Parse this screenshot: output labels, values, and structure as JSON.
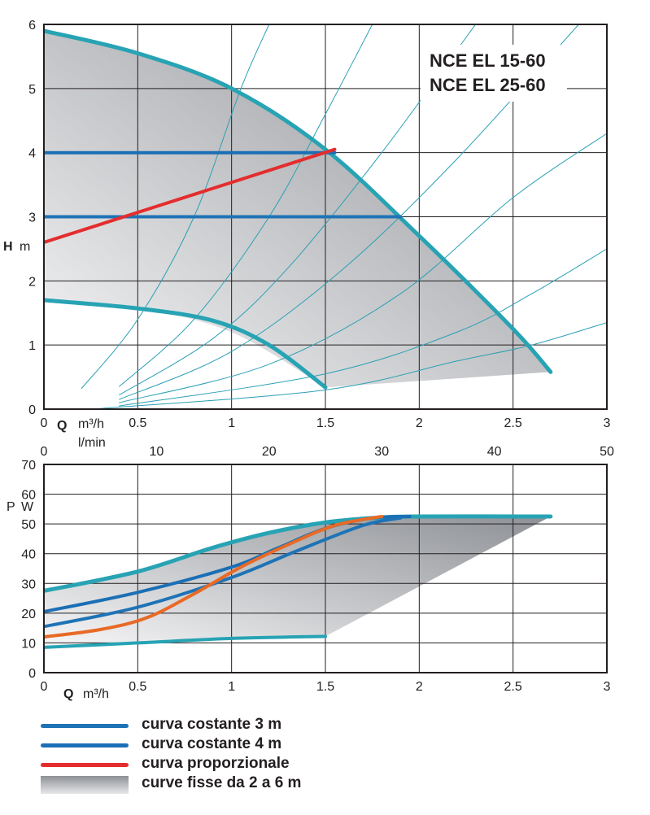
{
  "colors": {
    "max_curve": "#27a3b4",
    "constant_3m": "#1e73b6",
    "constant_4m": "#1b6fb5",
    "proportional_top": "#e42d2e",
    "proportional_bottom": "#e86a26",
    "system_curve": "#2aa0b5",
    "fill_dark": "#9b9ea3",
    "fill_light": "#f4f4f5",
    "grid": "#231f20"
  },
  "models": [
    "NCE EL 15-60",
    "NCE EL 25-60"
  ],
  "legend": [
    {
      "label": "curva costante 3 m",
      "type": "line",
      "color": "#1e73b6"
    },
    {
      "label": "curva costante 4 m",
      "type": "line",
      "color": "#1b6fb5"
    },
    {
      "label": "curva proporzionale",
      "type": "line",
      "color": "#e42d2e"
    },
    {
      "label": "curve fisse da 2 a 6 m",
      "type": "area",
      "color": "#9b9ea3"
    }
  ],
  "chart_data": [
    {
      "type": "line",
      "xlabel_symbol": "Q",
      "xlabel_unit": "m³/h",
      "x2label_unit": "l/min",
      "ylabel_symbol": "H",
      "ylabel_unit": "m",
      "xlim": [
        0,
        3
      ],
      "ylim": [
        0,
        6
      ],
      "x2lim": [
        0,
        50
      ],
      "xticks": [
        0,
        0.5,
        1,
        1.5,
        2,
        2.5,
        3
      ],
      "xtick_labels": [
        "0",
        "0.5",
        "1",
        "1.5",
        "2",
        "2.5",
        "3"
      ],
      "x2ticks": [
        0,
        10,
        20,
        30,
        40,
        50
      ],
      "x2tick_labels": [
        "0",
        "10",
        "20",
        "30",
        "40",
        "50"
      ],
      "yticks": [
        0,
        1,
        2,
        3,
        4,
        5,
        6
      ],
      "ytick_labels": [
        "0",
        "1",
        "2",
        "3",
        "4",
        "5",
        "6"
      ],
      "grid": true,
      "area": {
        "upper": [
          [
            0,
            5.9
          ],
          [
            0.5,
            5.55
          ],
          [
            1,
            5.0
          ],
          [
            1.5,
            4.05
          ],
          [
            2,
            2.7
          ],
          [
            2.5,
            1.25
          ],
          [
            2.7,
            0.58
          ]
        ],
        "lower": [
          [
            0,
            1.7
          ],
          [
            0.5,
            1.57
          ],
          [
            1,
            1.2
          ],
          [
            1.5,
            0.34
          ]
        ],
        "bottom_edge": [
          [
            1.5,
            0.34
          ],
          [
            2.7,
            0.58
          ]
        ]
      },
      "series": [
        {
          "key": "max",
          "points": [
            [
              0,
              5.9
            ],
            [
              0.5,
              5.55
            ],
            [
              1,
              5.0
            ],
            [
              1.5,
              4.05
            ],
            [
              2,
              2.7
            ],
            [
              2.5,
              1.25
            ],
            [
              2.7,
              0.58
            ]
          ],
          "color": "#27a3b4",
          "width": 5
        },
        {
          "key": "min",
          "points": [
            [
              0,
              1.7
            ],
            [
              0.5,
              1.57
            ],
            [
              0.9,
              1.38
            ],
            [
              1.2,
              1.0
            ],
            [
              1.5,
              0.34
            ]
          ],
          "color": "#27a3b4",
          "width": 5
        },
        {
          "key": "constant_4m",
          "points": [
            [
              0,
              4.0
            ],
            [
              1.55,
              4.0
            ]
          ],
          "color": "#1b6fb5",
          "width": 4
        },
        {
          "key": "constant_3m",
          "points": [
            [
              0,
              3.0
            ],
            [
              1.9,
              3.0
            ]
          ],
          "color": "#1e73b6",
          "width": 4
        },
        {
          "key": "proportional",
          "points": [
            [
              0,
              2.6
            ],
            [
              1.55,
              4.05
            ]
          ],
          "color": "#e42d2e",
          "width": 4
        }
      ],
      "system_curves": [
        {
          "points": [
            [
              0.2,
              0.32
            ],
            [
              0.5,
              1.4
            ],
            [
              0.8,
              3.0
            ],
            [
              1.05,
              5.0
            ],
            [
              1.2,
              6.0
            ]
          ]
        },
        {
          "points": [
            [
              0.4,
              0.35
            ],
            [
              0.8,
              1.4
            ],
            [
              1.2,
              3.0
            ],
            [
              1.5,
              4.6
            ],
            [
              1.75,
              6.0
            ]
          ]
        },
        {
          "points": [
            [
              0.4,
              0.22
            ],
            [
              0.9,
              1.1
            ],
            [
              1.3,
              2.2
            ],
            [
              1.8,
              4.0
            ],
            [
              2.3,
              6.0
            ]
          ]
        },
        {
          "points": [
            [
              0.4,
              0.15
            ],
            [
              1.0,
              0.9
            ],
            [
              1.6,
              2.2
            ],
            [
              2.2,
              3.9
            ],
            [
              2.85,
              6.0
            ]
          ]
        },
        {
          "points": [
            [
              0.4,
              0.1
            ],
            [
              1.2,
              0.7
            ],
            [
              1.9,
              1.8
            ],
            [
              2.5,
              3.3
            ],
            [
              3.0,
              4.3
            ]
          ]
        },
        {
          "points": [
            [
              0.4,
              0.05
            ],
            [
              1.5,
              0.55
            ],
            [
              2.2,
              1.2
            ],
            [
              2.6,
              1.8
            ],
            [
              3.0,
              2.5
            ]
          ]
        },
        {
          "points": [
            [
              0.3,
              0.01
            ],
            [
              1.5,
              0.3
            ],
            [
              2.2,
              0.75
            ],
            [
              2.6,
              1.0
            ],
            [
              3.0,
              1.35
            ]
          ]
        }
      ]
    },
    {
      "type": "line",
      "xlabel_symbol": "Q",
      "xlabel_unit": "m³/h",
      "ylabel_symbol": "P",
      "ylabel_unit": "W",
      "xlim": [
        0,
        3
      ],
      "ylim": [
        0,
        70
      ],
      "xticks": [
        0,
        0.5,
        1,
        1.5,
        2,
        2.5,
        3
      ],
      "xtick_labels": [
        "0",
        "0.5",
        "1",
        "1.5",
        "2",
        "2.5",
        "3"
      ],
      "yticks": [
        0,
        10,
        20,
        30,
        40,
        50,
        60,
        70
      ],
      "ytick_labels": [
        "0",
        "10",
        "20",
        "30",
        "40",
        "50",
        "60",
        "70"
      ],
      "grid": true,
      "area": {
        "upper": [
          [
            0,
            27.5
          ],
          [
            0.5,
            34
          ],
          [
            1,
            44
          ],
          [
            1.5,
            50.5
          ],
          [
            1.8,
            52.2
          ],
          [
            2,
            52.5
          ],
          [
            2.7,
            52.5
          ]
        ],
        "lower_points": [
          [
            0,
            8.5
          ],
          [
            0.5,
            10
          ],
          [
            1,
            11.5
          ],
          [
            1.5,
            12.2
          ]
        ],
        "bottom_edge": [
          [
            1.5,
            12.2
          ],
          [
            2.7,
            52.5
          ]
        ]
      },
      "series": [
        {
          "key": "max",
          "points": [
            [
              0,
              27.5
            ],
            [
              0.5,
              34
            ],
            [
              0.9,
              42
            ],
            [
              1.2,
              47
            ],
            [
              1.5,
              50.5
            ],
            [
              1.8,
              52.2
            ],
            [
              2.0,
              52.5
            ],
            [
              2.7,
              52.5
            ]
          ],
          "color": "#27a3b4",
          "width": 5
        },
        {
          "key": "min",
          "points": [
            [
              0,
              8.5
            ],
            [
              0.5,
              10
            ],
            [
              1.0,
              11.5
            ],
            [
              1.5,
              12.2
            ]
          ],
          "color": "#27a3b4",
          "width": 4
        },
        {
          "key": "constant_4m",
          "points": [
            [
              0,
              20.5
            ],
            [
              0.5,
              27
            ],
            [
              1,
              35.5
            ],
            [
              1.25,
              42
            ],
            [
              1.5,
              48.5
            ],
            [
              1.75,
              52
            ],
            [
              1.95,
              52.5
            ]
          ],
          "color": "#1b6fb5",
          "width": 4
        },
        {
          "key": "constant_3m",
          "points": [
            [
              0,
              15.5
            ],
            [
              0.5,
              22
            ],
            [
              1,
              32
            ],
            [
              1.35,
              41
            ],
            [
              1.7,
              49.5
            ],
            [
              1.9,
              52
            ]
          ],
          "color": "#1e73b6",
          "width": 4
        },
        {
          "key": "proportional",
          "points": [
            [
              0,
              12
            ],
            [
              0.3,
              14.5
            ],
            [
              0.55,
              18.5
            ],
            [
              0.8,
              26.5
            ],
            [
              1.05,
              35.5
            ],
            [
              1.3,
              43
            ],
            [
              1.55,
              49.5
            ],
            [
              1.8,
              52.5
            ]
          ],
          "color": "#e86a26",
          "width": 4
        }
      ]
    }
  ]
}
